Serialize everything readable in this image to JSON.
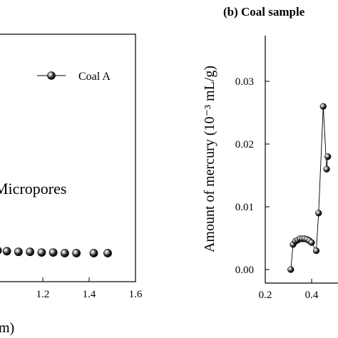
{
  "chart_data": [
    {
      "panel": "a",
      "type": "scatter",
      "title": "",
      "xlabel": "m)",
      "ylabel": "",
      "xlim": [
        1.0,
        1.6
      ],
      "x_ticks": [
        "1.2",
        "1.4",
        "1.6"
      ],
      "annotation": "Micropores",
      "legend": {
        "position": "top-right"
      },
      "series": [
        {
          "name": "Coal A",
          "marker": "half-filled circle",
          "x": [
            1.005,
            1.045,
            1.095,
            1.145,
            1.195,
            1.245,
            1.295,
            1.345,
            1.42,
            1.48
          ],
          "y": [
            0.0033,
            0.0032,
            0.0031,
            0.0031,
            0.003,
            0.003,
            0.0029,
            0.0029,
            0.0029,
            0.0029
          ]
        }
      ]
    },
    {
      "panel": "b",
      "type": "line",
      "title": "(b) Coal sample",
      "xlabel": "",
      "ylabel": "Amount of mercury (10⁻³ mL/g)",
      "xlim": [
        0.2,
        0.5
      ],
      "ylim": [
        -0.002,
        0.035
      ],
      "x_ticks": [
        "0.2",
        "0.4"
      ],
      "y_ticks": [
        "0.00",
        "0.01",
        "0.02",
        "0.03"
      ],
      "series": [
        {
          "name": "",
          "marker": "half-filled circle",
          "x": [
            0.31,
            0.32,
            0.33,
            0.34,
            0.35,
            0.36,
            0.37,
            0.38,
            0.39,
            0.4,
            0.42,
            0.43,
            0.45,
            0.465,
            0.47
          ],
          "y": [
            0.0,
            0.004,
            0.0045,
            0.0047,
            0.0049,
            0.0049,
            0.0049,
            0.0048,
            0.0046,
            0.0043,
            0.003,
            0.009,
            0.026,
            0.016,
            0.018
          ]
        }
      ]
    }
  ]
}
